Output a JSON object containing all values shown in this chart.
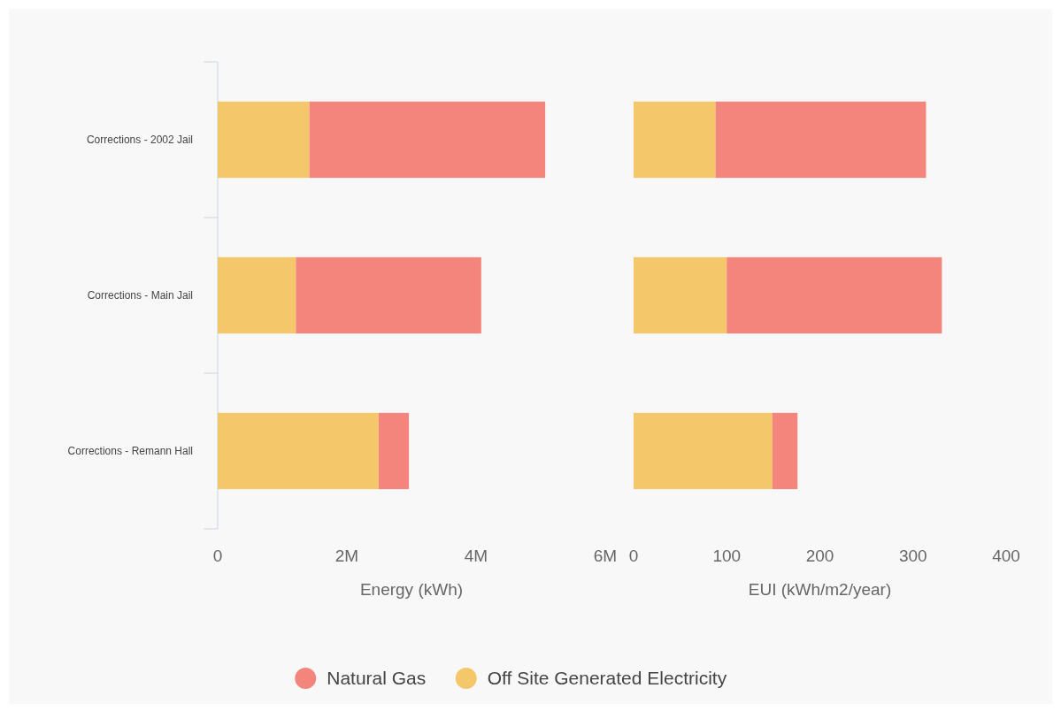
{
  "chart_data": [
    {
      "type": "bar",
      "orientation": "horizontal",
      "stacked": true,
      "xlabel": "Energy (kWh)",
      "categories": [
        "Corrections - 2002 Jail",
        "Corrections - Main Jail",
        "Corrections - Remann Hall"
      ],
      "series": [
        {
          "name": "Off Site Generated Electricity",
          "color": "#f5c76b",
          "values": [
            1420000,
            1210000,
            2490000
          ]
        },
        {
          "name": "Natural Gas",
          "color": "#f4857c",
          "values": [
            3650000,
            2870000,
            470000
          ]
        }
      ],
      "xlim": [
        0,
        6000000
      ],
      "xticks": [
        {
          "value": 0,
          "label": "0"
        },
        {
          "value": 2000000,
          "label": "2M"
        },
        {
          "value": 4000000,
          "label": "4M"
        },
        {
          "value": 6000000,
          "label": "6M"
        }
      ],
      "legend": "bottom"
    },
    {
      "type": "bar",
      "orientation": "horizontal",
      "stacked": true,
      "xlabel": "EUI (kWh/m2/year)",
      "categories": [
        "Corrections - 2002 Jail",
        "Corrections - Main Jail",
        "Corrections - Remann Hall"
      ],
      "series": [
        {
          "color": "#f5c76b",
          "values": [
            88,
            100,
            149
          ]
        },
        {
          "color": "#f4857c",
          "values": [
            226,
            231,
            27
          ]
        }
      ],
      "xlim": [
        0,
        400
      ],
      "xticks": [
        0,
        100,
        200,
        300,
        400
      ],
      "tick_labels": "x"
    }
  ]
}
